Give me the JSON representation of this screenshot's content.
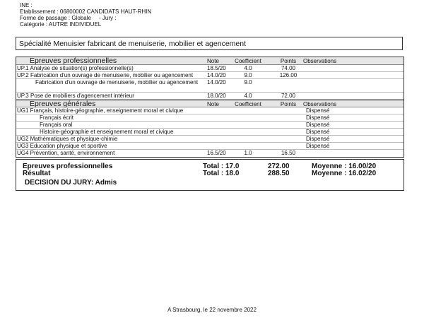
{
  "header": {
    "ine": "INE :",
    "etablissement": "Etablissement : 06800002 CANDIDATS HAUT-RHIN",
    "forme": "Forme de passage : Globale",
    "jury": "- Jury :",
    "categorie": "Catégorie : AUTRE INDIVIDUEL"
  },
  "title": "Spécialité Menuisier fabricant de menuiserie, mobilier et agencement",
  "columns": {
    "note": "Note",
    "coef": "Coefficient",
    "points": "Points",
    "obs": "Observations"
  },
  "pro": {
    "heading": "Epreuves professionnelles",
    "rows": [
      {
        "label": "UP.1 Analyse de situation(s) professionnelle(s)",
        "note": "18.5/20",
        "coef": "4.0",
        "points": "74.00",
        "obs": ""
      },
      {
        "label": "UP.2 Fabrication d'un ouvrage de menuiserie, mobilier ou agencement",
        "note": "14.0/20",
        "coef": "9.0",
        "points": "126.00",
        "obs": ""
      },
      {
        "label": "Fabrication d'un ouvrage de menuiserie, mobilier ou agencement",
        "note": "14.0/20",
        "coef": "9.0",
        "points": "",
        "obs": ""
      },
      {
        "label": "UP.3 Pose de mobiliers d'agencement intérieur",
        "note": "18.0/20",
        "coef": "4.0",
        "points": "72.00",
        "obs": ""
      }
    ]
  },
  "gen": {
    "heading": "Epreuves générales",
    "rows": [
      {
        "label": "UG1 Français, histoire-géographie, enseignement moral et civique",
        "obs": "Dispensé"
      },
      {
        "label": "Français écrit",
        "obs": "Dispensé"
      },
      {
        "label": "Français oral",
        "obs": "Dispensé"
      },
      {
        "label": "Histoire-géographie et enseignement moral et civique",
        "obs": "Dispensé"
      },
      {
        "label": "UG2 Mathématiques et  physique-chimie",
        "obs": "Dispensé"
      },
      {
        "label": "UG3 Education physique et sportive",
        "obs": "Dispensé"
      },
      {
        "label": "UG4 Prévention, santé, environnement",
        "note": "16.5/20",
        "coef": "1.0",
        "points": "16.50",
        "obs": ""
      }
    ]
  },
  "summary": {
    "pro": {
      "label": "Epreuves professionnelles",
      "total_label": "Total :",
      "coef": "17.0",
      "points": "272.00",
      "moyenne": "Moyenne : 16.00/20"
    },
    "result": {
      "label": "Résultat",
      "total_label": "Total :",
      "coef": "18.0",
      "points": "288.50",
      "moyenne": "Moyenne : 16.02/20"
    },
    "decision": "DECISION DU JURY: Admis"
  },
  "footer": "A Strasbourg, le 22 novembre 2022"
}
